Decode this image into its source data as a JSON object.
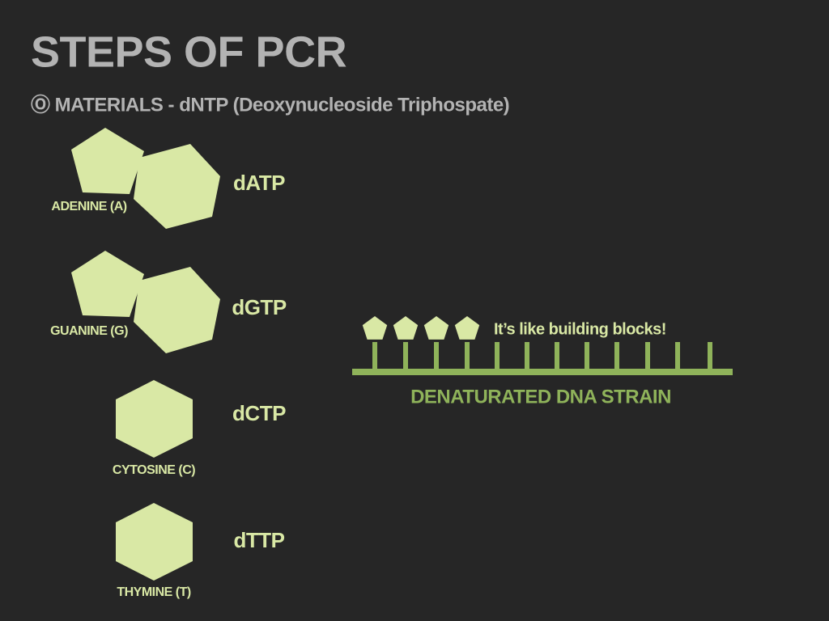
{
  "header": {
    "title": "STEPS OF PCR",
    "subtitle": "Ⓞ MATERIALS - dNTP (Deoxynucleoside Triphospate)"
  },
  "nucleotides": [
    {
      "base": "ADENINE (A)",
      "name": "dATP"
    },
    {
      "base": "GUANINE (G)",
      "name": "dGTP"
    },
    {
      "base": "CYTOSINE (C)",
      "name": "dCTP"
    },
    {
      "base": "THYMINE (T)",
      "name": "dTTP"
    }
  ],
  "diagram": {
    "note": "It’s like building blocks!",
    "label": "DENATURATED DNA STRAIN"
  }
}
